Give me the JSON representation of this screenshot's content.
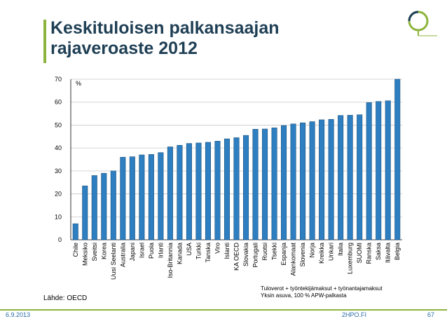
{
  "title": "Keskituloisen palkansaajan rajaveroaste 2012",
  "source": "Lähde: OECD",
  "note_lines": [
    "Tuloverot + työntekijämaksut + työnantajamaksut",
    "Yksin asuva, 100 % APW-palkasta"
  ],
  "footer": {
    "date": "6.9.2013",
    "brand": "2HPO.FI",
    "page": "67"
  },
  "colors": {
    "bar": "#2d7fc1",
    "bar_edge": "#1d4f7a",
    "accent": "#8cb43c",
    "title": "#1f3f55"
  },
  "chart_data": {
    "type": "bar",
    "ylabel": "%",
    "ylim": [
      0,
      70
    ],
    "yticks": [
      0,
      10,
      20,
      30,
      40,
      50,
      60,
      70
    ],
    "grid": true,
    "categories": [
      "Chile",
      "Meksiko",
      "Sveitsi",
      "Korea",
      "Uusi Seelanti",
      "Australia",
      "Japani",
      "Israel",
      "Puola",
      "Irlanti",
      "Iso-Britannia",
      "Kanada",
      "USA",
      "Turkki",
      "Tanska",
      "Viro",
      "Islanti",
      "KA OECD",
      "Slovakia",
      "Portugali",
      "Ruotsi",
      "Tsekki",
      "Espanja",
      "Alankomaat",
      "Slovenia",
      "Norja",
      "Kreikka",
      "Unkari",
      "Italia",
      "Luxemburg",
      "SUOMI",
      "Ranska",
      "Saksa",
      "Itävalta",
      "Belgia"
    ],
    "values": [
      7,
      23.5,
      28,
      29,
      30,
      36,
      36.2,
      37,
      37.2,
      38,
      40.5,
      41.2,
      42,
      42.2,
      42.5,
      43,
      44,
      44.5,
      45.5,
      48.2,
      48.3,
      48.8,
      49.8,
      50.5,
      51,
      51.5,
      52.3,
      52.5,
      54.2,
      54.3,
      54.5,
      59.8,
      60.3,
      60.6,
      70
    ]
  }
}
